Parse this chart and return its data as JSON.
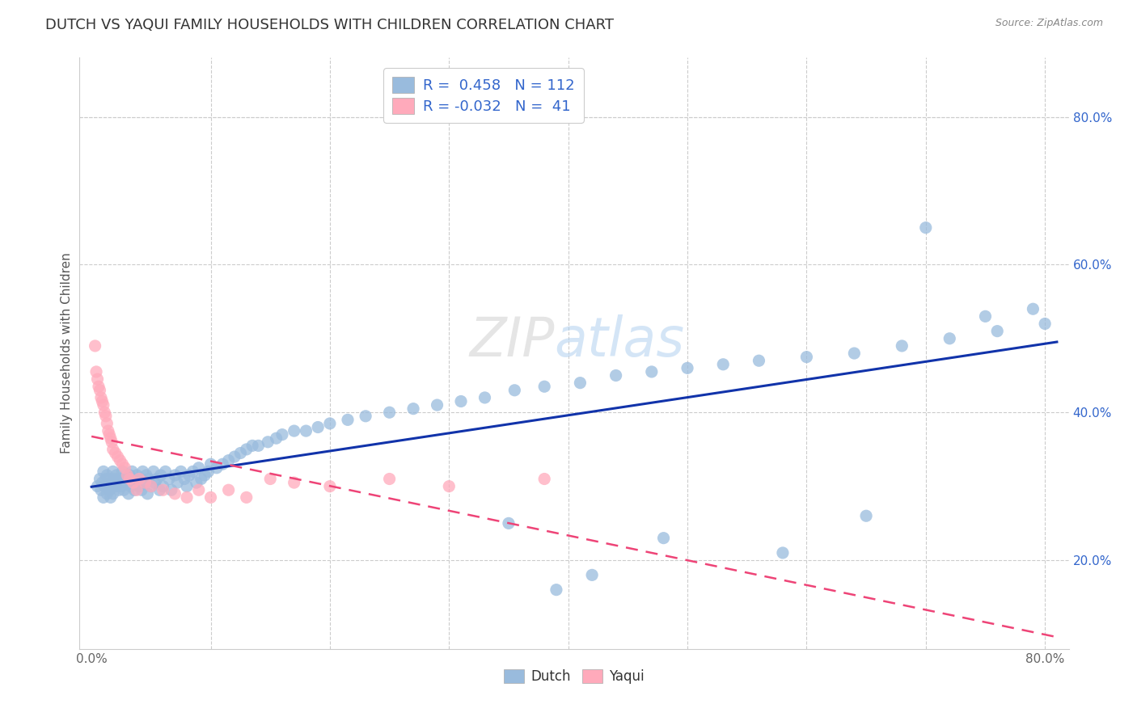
{
  "title": "DUTCH VS YAQUI FAMILY HOUSEHOLDS WITH CHILDREN CORRELATION CHART",
  "source": "Source: ZipAtlas.com",
  "ylabel": "Family Households with Children",
  "dutch_R": 0.458,
  "dutch_N": 112,
  "yaqui_R": -0.032,
  "yaqui_N": 41,
  "dutch_color": "#99BBDD",
  "yaqui_color": "#FFAABB",
  "dutch_trend_color": "#1133AA",
  "yaqui_trend_color": "#EE4477",
  "legend_text_color": "#3366CC",
  "watermark": "ZIPatlas",
  "dutch_x": [
    0.005,
    0.007,
    0.008,
    0.009,
    0.01,
    0.01,
    0.011,
    0.012,
    0.013,
    0.013,
    0.014,
    0.015,
    0.015,
    0.016,
    0.017,
    0.018,
    0.018,
    0.019,
    0.02,
    0.021,
    0.022,
    0.023,
    0.024,
    0.025,
    0.026,
    0.027,
    0.028,
    0.03,
    0.031,
    0.032,
    0.033,
    0.034,
    0.035,
    0.036,
    0.037,
    0.038,
    0.04,
    0.041,
    0.042,
    0.043,
    0.045,
    0.046,
    0.047,
    0.048,
    0.05,
    0.052,
    0.053,
    0.055,
    0.057,
    0.058,
    0.06,
    0.062,
    0.065,
    0.067,
    0.07,
    0.072,
    0.075,
    0.078,
    0.08,
    0.082,
    0.085,
    0.088,
    0.09,
    0.092,
    0.095,
    0.098,
    0.1,
    0.105,
    0.11,
    0.115,
    0.12,
    0.125,
    0.13,
    0.135,
    0.14,
    0.148,
    0.155,
    0.16,
    0.17,
    0.18,
    0.19,
    0.2,
    0.215,
    0.23,
    0.25,
    0.27,
    0.29,
    0.31,
    0.33,
    0.355,
    0.38,
    0.41,
    0.44,
    0.47,
    0.5,
    0.53,
    0.56,
    0.6,
    0.64,
    0.68,
    0.72,
    0.76,
    0.79,
    0.8,
    0.48,
    0.39,
    0.42,
    0.35,
    0.58,
    0.65,
    0.7,
    0.75
  ],
  "dutch_y": [
    0.3,
    0.31,
    0.295,
    0.305,
    0.285,
    0.32,
    0.3,
    0.31,
    0.29,
    0.315,
    0.3,
    0.295,
    0.31,
    0.285,
    0.305,
    0.32,
    0.29,
    0.31,
    0.3,
    0.315,
    0.305,
    0.295,
    0.31,
    0.3,
    0.32,
    0.295,
    0.31,
    0.305,
    0.29,
    0.315,
    0.3,
    0.32,
    0.31,
    0.295,
    0.305,
    0.315,
    0.3,
    0.31,
    0.295,
    0.32,
    0.305,
    0.315,
    0.29,
    0.31,
    0.3,
    0.32,
    0.305,
    0.31,
    0.295,
    0.315,
    0.3,
    0.32,
    0.31,
    0.295,
    0.315,
    0.305,
    0.32,
    0.31,
    0.3,
    0.315,
    0.32,
    0.305,
    0.325,
    0.31,
    0.315,
    0.32,
    0.33,
    0.325,
    0.33,
    0.335,
    0.34,
    0.345,
    0.35,
    0.355,
    0.355,
    0.36,
    0.365,
    0.37,
    0.375,
    0.375,
    0.38,
    0.385,
    0.39,
    0.395,
    0.4,
    0.405,
    0.41,
    0.415,
    0.42,
    0.43,
    0.435,
    0.44,
    0.45,
    0.455,
    0.46,
    0.465,
    0.47,
    0.475,
    0.48,
    0.49,
    0.5,
    0.51,
    0.54,
    0.52,
    0.23,
    0.16,
    0.18,
    0.25,
    0.21,
    0.26,
    0.65,
    0.53
  ],
  "yaqui_x": [
    0.003,
    0.004,
    0.005,
    0.006,
    0.007,
    0.008,
    0.009,
    0.01,
    0.011,
    0.012,
    0.013,
    0.014,
    0.015,
    0.016,
    0.017,
    0.018,
    0.02,
    0.022,
    0.024,
    0.026,
    0.028,
    0.03,
    0.032,
    0.035,
    0.038,
    0.04,
    0.045,
    0.05,
    0.06,
    0.07,
    0.08,
    0.09,
    0.1,
    0.115,
    0.13,
    0.15,
    0.17,
    0.2,
    0.25,
    0.3,
    0.38
  ],
  "yaqui_y": [
    0.49,
    0.455,
    0.445,
    0.435,
    0.43,
    0.42,
    0.415,
    0.41,
    0.4,
    0.395,
    0.385,
    0.375,
    0.37,
    0.365,
    0.36,
    0.35,
    0.345,
    0.34,
    0.335,
    0.33,
    0.325,
    0.315,
    0.31,
    0.305,
    0.295,
    0.31,
    0.305,
    0.3,
    0.295,
    0.29,
    0.285,
    0.295,
    0.285,
    0.295,
    0.285,
    0.31,
    0.305,
    0.3,
    0.31,
    0.3,
    0.31
  ],
  "xlim": [
    -0.01,
    0.82
  ],
  "ylim": [
    0.08,
    0.88
  ],
  "ytick_pos": [
    0.2,
    0.4,
    0.6,
    0.8
  ],
  "ytick_labels": [
    "20.0%",
    "40.0%",
    "60.0%",
    "80.0%"
  ],
  "xtick_pos": [
    0.0,
    0.1,
    0.2,
    0.3,
    0.4,
    0.5,
    0.6,
    0.7,
    0.8
  ],
  "xtick_labels": [
    "0.0%",
    "",
    "",
    "",
    "",
    "",
    "",
    "",
    "80.0%"
  ]
}
